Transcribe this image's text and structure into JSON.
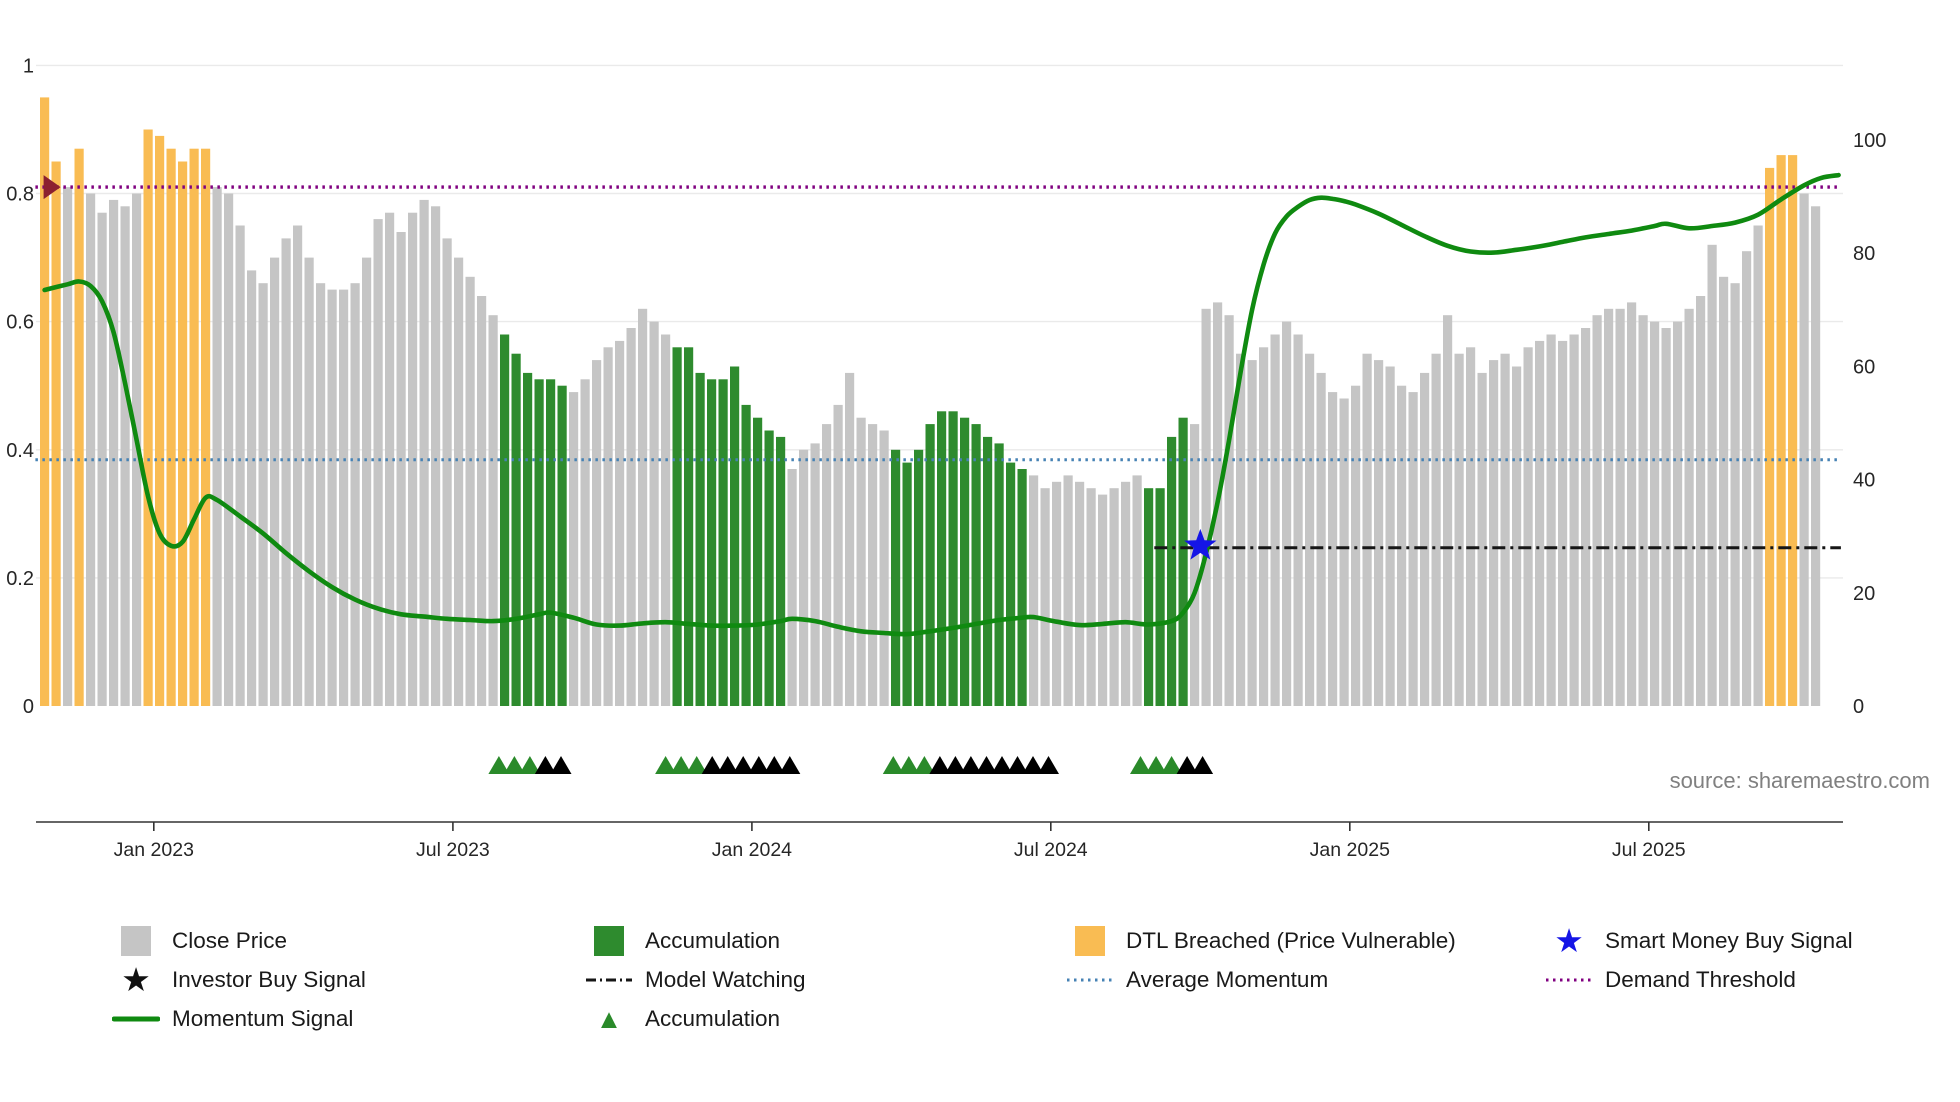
{
  "chart_data": {
    "type": "bar+line",
    "source": "source: sharemaestro.com",
    "left_axis": {
      "range": [
        0,
        1.04
      ],
      "ticks": [
        {
          "label": "0",
          "v": 0
        },
        {
          "label": "0.2",
          "v": 0.2
        },
        {
          "label": "0.4",
          "v": 0.4
        },
        {
          "label": "0.6",
          "v": 0.6
        },
        {
          "label": "0.8",
          "v": 0.8
        },
        {
          "label": "1",
          "v": 1
        }
      ]
    },
    "right_axis": {
      "range": [
        0,
        125
      ],
      "ticks": [
        {
          "label": "0",
          "v": 0
        },
        {
          "label": "20",
          "v": 20
        },
        {
          "label": "40",
          "v": 40
        },
        {
          "label": "60",
          "v": 60
        },
        {
          "label": "80",
          "v": 80
        },
        {
          "label": "100",
          "v": 100
        }
      ]
    },
    "x_ticks": [
      {
        "label": "Jan 2023",
        "i": 9.5
      },
      {
        "label": "Jul 2023",
        "i": 35.5
      },
      {
        "label": "Jan 2024",
        "i": 61.5
      },
      {
        "label": "Jul 2024",
        "i": 87.5
      },
      {
        "label": "Jan 2025",
        "i": 113.5
      },
      {
        "label": "Jul 2025",
        "i": 139.5
      }
    ],
    "bars": {
      "kinds": {
        "c": "Close Price",
        "a": "Accumulation",
        "d": "DTL Breached (Price Vulnerable)"
      },
      "values": [
        [
          0.95,
          "d"
        ],
        [
          0.85,
          "d"
        ],
        [
          0.81,
          "c"
        ],
        [
          0.87,
          "d"
        ],
        [
          0.8,
          "c"
        ],
        [
          0.77,
          "c"
        ],
        [
          0.79,
          "c"
        ],
        [
          0.78,
          "c"
        ],
        [
          0.8,
          "c"
        ],
        [
          0.9,
          "d"
        ],
        [
          0.89,
          "d"
        ],
        [
          0.87,
          "d"
        ],
        [
          0.85,
          "d"
        ],
        [
          0.87,
          "d"
        ],
        [
          0.87,
          "d"
        ],
        [
          0.81,
          "c"
        ],
        [
          0.8,
          "c"
        ],
        [
          0.75,
          "c"
        ],
        [
          0.68,
          "c"
        ],
        [
          0.66,
          "c"
        ],
        [
          0.7,
          "c"
        ],
        [
          0.73,
          "c"
        ],
        [
          0.75,
          "c"
        ],
        [
          0.7,
          "c"
        ],
        [
          0.66,
          "c"
        ],
        [
          0.65,
          "c"
        ],
        [
          0.65,
          "c"
        ],
        [
          0.66,
          "c"
        ],
        [
          0.7,
          "c"
        ],
        [
          0.76,
          "c"
        ],
        [
          0.77,
          "c"
        ],
        [
          0.74,
          "c"
        ],
        [
          0.77,
          "c"
        ],
        [
          0.79,
          "c"
        ],
        [
          0.78,
          "c"
        ],
        [
          0.73,
          "c"
        ],
        [
          0.7,
          "c"
        ],
        [
          0.67,
          "c"
        ],
        [
          0.64,
          "c"
        ],
        [
          0.61,
          "c"
        ],
        [
          0.58,
          "a"
        ],
        [
          0.55,
          "a"
        ],
        [
          0.52,
          "a"
        ],
        [
          0.51,
          "a"
        ],
        [
          0.51,
          "a"
        ],
        [
          0.5,
          "a"
        ],
        [
          0.49,
          "c"
        ],
        [
          0.51,
          "c"
        ],
        [
          0.54,
          "c"
        ],
        [
          0.56,
          "c"
        ],
        [
          0.57,
          "c"
        ],
        [
          0.59,
          "c"
        ],
        [
          0.62,
          "c"
        ],
        [
          0.6,
          "c"
        ],
        [
          0.58,
          "c"
        ],
        [
          0.56,
          "a"
        ],
        [
          0.56,
          "a"
        ],
        [
          0.52,
          "a"
        ],
        [
          0.51,
          "a"
        ],
        [
          0.51,
          "a"
        ],
        [
          0.53,
          "a"
        ],
        [
          0.47,
          "a"
        ],
        [
          0.45,
          "a"
        ],
        [
          0.43,
          "a"
        ],
        [
          0.42,
          "a"
        ],
        [
          0.37,
          "c"
        ],
        [
          0.4,
          "c"
        ],
        [
          0.41,
          "c"
        ],
        [
          0.44,
          "c"
        ],
        [
          0.47,
          "c"
        ],
        [
          0.52,
          "c"
        ],
        [
          0.45,
          "c"
        ],
        [
          0.44,
          "c"
        ],
        [
          0.43,
          "c"
        ],
        [
          0.4,
          "a"
        ],
        [
          0.38,
          "a"
        ],
        [
          0.4,
          "a"
        ],
        [
          0.44,
          "a"
        ],
        [
          0.46,
          "a"
        ],
        [
          0.46,
          "a"
        ],
        [
          0.45,
          "a"
        ],
        [
          0.44,
          "a"
        ],
        [
          0.42,
          "a"
        ],
        [
          0.41,
          "a"
        ],
        [
          0.38,
          "a"
        ],
        [
          0.37,
          "a"
        ],
        [
          0.36,
          "c"
        ],
        [
          0.34,
          "c"
        ],
        [
          0.35,
          "c"
        ],
        [
          0.36,
          "c"
        ],
        [
          0.35,
          "c"
        ],
        [
          0.34,
          "c"
        ],
        [
          0.33,
          "c"
        ],
        [
          0.34,
          "c"
        ],
        [
          0.35,
          "c"
        ],
        [
          0.36,
          "c"
        ],
        [
          0.34,
          "a"
        ],
        [
          0.34,
          "a"
        ],
        [
          0.42,
          "a"
        ],
        [
          0.45,
          "a"
        ],
        [
          0.44,
          "c"
        ],
        [
          0.62,
          "c"
        ],
        [
          0.63,
          "c"
        ],
        [
          0.61,
          "c"
        ],
        [
          0.55,
          "c"
        ],
        [
          0.54,
          "c"
        ],
        [
          0.56,
          "c"
        ],
        [
          0.58,
          "c"
        ],
        [
          0.6,
          "c"
        ],
        [
          0.58,
          "c"
        ],
        [
          0.55,
          "c"
        ],
        [
          0.52,
          "c"
        ],
        [
          0.49,
          "c"
        ],
        [
          0.48,
          "c"
        ],
        [
          0.5,
          "c"
        ],
        [
          0.55,
          "c"
        ],
        [
          0.54,
          "c"
        ],
        [
          0.53,
          "c"
        ],
        [
          0.5,
          "c"
        ],
        [
          0.49,
          "c"
        ],
        [
          0.52,
          "c"
        ],
        [
          0.55,
          "c"
        ],
        [
          0.61,
          "c"
        ],
        [
          0.55,
          "c"
        ],
        [
          0.56,
          "c"
        ],
        [
          0.52,
          "c"
        ],
        [
          0.54,
          "c"
        ],
        [
          0.55,
          "c"
        ],
        [
          0.53,
          "c"
        ],
        [
          0.56,
          "c"
        ],
        [
          0.57,
          "c"
        ],
        [
          0.58,
          "c"
        ],
        [
          0.57,
          "c"
        ],
        [
          0.58,
          "c"
        ],
        [
          0.59,
          "c"
        ],
        [
          0.61,
          "c"
        ],
        [
          0.62,
          "c"
        ],
        [
          0.62,
          "c"
        ],
        [
          0.63,
          "c"
        ],
        [
          0.61,
          "c"
        ],
        [
          0.6,
          "c"
        ],
        [
          0.59,
          "c"
        ],
        [
          0.6,
          "c"
        ],
        [
          0.62,
          "c"
        ],
        [
          0.64,
          "c"
        ],
        [
          0.72,
          "c"
        ],
        [
          0.67,
          "c"
        ],
        [
          0.66,
          "c"
        ],
        [
          0.71,
          "c"
        ],
        [
          0.75,
          "c"
        ],
        [
          0.84,
          "d"
        ],
        [
          0.86,
          "d"
        ],
        [
          0.86,
          "d"
        ],
        [
          0.8,
          "c"
        ],
        [
          0.78,
          "c"
        ]
      ]
    },
    "momentum": {
      "name": "Momentum Signal",
      "axis": "right",
      "points": [
        [
          0,
          73.5
        ],
        [
          2,
          74.5
        ],
        [
          3,
          75
        ],
        [
          4,
          74.2
        ],
        [
          5,
          71.5
        ],
        [
          6,
          66
        ],
        [
          7,
          57
        ],
        [
          8,
          47
        ],
        [
          9,
          37
        ],
        [
          10,
          30.5
        ],
        [
          11,
          28.3
        ],
        [
          12,
          29
        ],
        [
          13,
          33
        ],
        [
          14,
          36.8
        ],
        [
          15,
          36.4
        ],
        [
          17,
          33.5
        ],
        [
          19,
          30.5
        ],
        [
          21,
          27
        ],
        [
          23,
          23.8
        ],
        [
          25,
          21
        ],
        [
          27,
          18.8
        ],
        [
          29,
          17.2
        ],
        [
          31,
          16.2
        ],
        [
          33,
          15.8
        ],
        [
          35,
          15.4
        ],
        [
          37,
          15.2
        ],
        [
          39,
          15
        ],
        [
          41,
          15.4
        ],
        [
          43,
          16.2
        ],
        [
          44,
          16.5
        ],
        [
          46,
          15.6
        ],
        [
          48,
          14.4
        ],
        [
          50,
          14.2
        ],
        [
          52,
          14.6
        ],
        [
          54,
          14.8
        ],
        [
          56,
          14.5
        ],
        [
          58,
          14.2
        ],
        [
          60,
          14.2
        ],
        [
          62,
          14.4
        ],
        [
          64,
          15
        ],
        [
          65,
          15.4
        ],
        [
          67,
          15
        ],
        [
          69,
          14
        ],
        [
          71,
          13.2
        ],
        [
          73,
          12.9
        ],
        [
          75,
          12.7
        ],
        [
          77,
          13.2
        ],
        [
          79,
          13.8
        ],
        [
          81,
          14.5
        ],
        [
          83,
          15.2
        ],
        [
          85,
          15.6
        ],
        [
          86,
          15.7
        ],
        [
          88,
          14.9
        ],
        [
          90,
          14.3
        ],
        [
          92,
          14.5
        ],
        [
          94,
          14.8
        ],
        [
          96,
          14.4
        ],
        [
          98,
          15
        ],
        [
          99,
          16.5
        ],
        [
          100,
          20
        ],
        [
          101,
          27
        ],
        [
          102,
          36
        ],
        [
          103,
          47
        ],
        [
          104,
          59
        ],
        [
          105,
          70
        ],
        [
          106,
          78
        ],
        [
          107,
          83.5
        ],
        [
          108,
          86.5
        ],
        [
          109,
          88.2
        ],
        [
          110,
          89.4
        ],
        [
          111,
          89.8
        ],
        [
          112,
          89.6
        ],
        [
          113,
          89.2
        ],
        [
          114,
          88.6
        ],
        [
          116,
          87
        ],
        [
          118,
          85
        ],
        [
          120,
          83
        ],
        [
          122,
          81.3
        ],
        [
          124,
          80.3
        ],
        [
          126,
          80.1
        ],
        [
          128,
          80.6
        ],
        [
          130,
          81.2
        ],
        [
          132,
          82
        ],
        [
          134,
          82.8
        ],
        [
          136,
          83.4
        ],
        [
          138,
          84
        ],
        [
          140,
          84.8
        ],
        [
          141,
          85.2
        ],
        [
          143,
          84.4
        ],
        [
          145,
          84.8
        ],
        [
          147,
          85.4
        ],
        [
          149,
          86.8
        ],
        [
          151,
          89.5
        ],
        [
          153,
          92
        ],
        [
          154.5,
          93.3
        ],
        [
          156,
          93.8
        ]
      ]
    },
    "hlines": [
      {
        "id": "demand",
        "label": "Demand Threshold",
        "axis": "left",
        "value": 0.81,
        "from": -0.8,
        "to": 156.2
      },
      {
        "id": "avg",
        "label": "Average Momentum",
        "axis": "right",
        "value": 43.5,
        "from": -0.8,
        "to": 156.2
      },
      {
        "id": "model",
        "label": "Model Watching",
        "axis": "left",
        "value": 0.247,
        "from": 96.5,
        "to": 156.2
      }
    ],
    "markers": {
      "smart_money_buy_signal": {
        "i": 100.5,
        "value": 0.25
      },
      "demand_threshold_start": {
        "i": 0.7,
        "value": 0.81
      },
      "accumulation_marker_positions": [
        39.5,
        40.85,
        42.2,
        54,
        55.35,
        56.7,
        73.8,
        75.15,
        76.5,
        95.3,
        96.65,
        98
      ],
      "investor_buy_marker_positions": [
        43.55,
        44.9,
        58.05,
        59.4,
        60.75,
        62.1,
        63.45,
        64.8,
        77.85,
        79.2,
        80.55,
        81.9,
        83.25,
        84.6,
        85.95,
        87.3,
        99.35,
        100.7
      ]
    },
    "colors": {
      "close": "#c5c5c5",
      "accumulation": "#2e8b2e",
      "dtl_breached": "#f9bc53",
      "momentum": "#0f8a10",
      "average_momentum": "#4682b4",
      "demand_threshold": "#800080",
      "model_watching": "#161616",
      "smart_money": "#1515e6",
      "demand_marker": "#8b2030",
      "triangle_green": "#2a8a2a",
      "triangle_black": "#000000",
      "axis_text": "#262626",
      "grid": "#eaeaea"
    }
  },
  "legend": {
    "items": [
      {
        "type": "square",
        "icon": "close-price-swatch",
        "color": "#c5c5c5",
        "label": "Close Price"
      },
      {
        "type": "star",
        "icon": "investor-buy-signal-star-icon",
        "color": "#111111",
        "label": "Investor Buy Signal"
      },
      {
        "type": "line",
        "icon": "momentum-signal-line-icon",
        "color": "#0f8a10",
        "dash": "",
        "width": 5,
        "label": "Momentum Signal"
      },
      {
        "type": "square",
        "icon": "accumulation-swatch",
        "color": "#2e8b2e",
        "label": "Accumulation"
      },
      {
        "type": "line",
        "icon": "model-watching-line-icon",
        "color": "#161616",
        "dash": "10 4 2 4",
        "width": 3,
        "label": "Model Watching"
      },
      {
        "type": "triangle",
        "icon": "accumulation-triangle-icon",
        "color": "#2a8a2a",
        "label": "Accumulation"
      },
      {
        "type": "square",
        "icon": "dtl-breached-swatch",
        "color": "#f9bc53",
        "label": "DTL Breached (Price Vulnerable)"
      },
      {
        "type": "line",
        "icon": "average-momentum-line-icon",
        "color": "#4682b4",
        "dash": "2.5 4.5",
        "width": 3,
        "label": "Average Momentum"
      },
      {
        "type": "star",
        "icon": "smart-money-buy-star-icon",
        "color": "#1515e6",
        "label": "Smart Money Buy Signal"
      },
      {
        "type": "line",
        "icon": "demand-threshold-line-icon",
        "color": "#800080",
        "dash": "2.5 4.5",
        "width": 3,
        "label": "Demand Threshold"
      }
    ]
  }
}
